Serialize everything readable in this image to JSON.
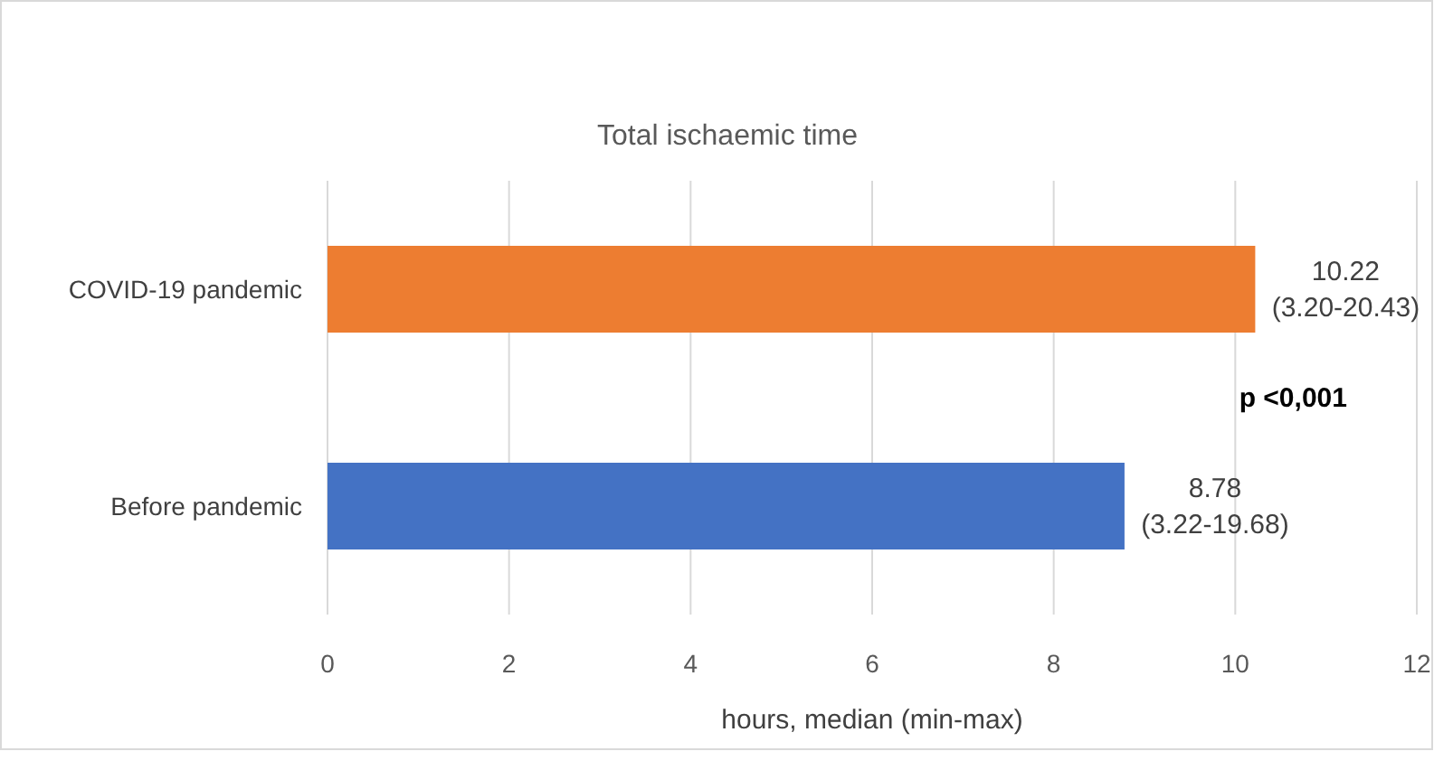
{
  "chart_data": {
    "type": "bar",
    "orientation": "horizontal",
    "title": "Total ischaemic time",
    "xlabel": "hours, median (min-max)",
    "categories": [
      "COVID-19 pandemic",
      "Before pandemic"
    ],
    "values": [
      10.22,
      8.78
    ],
    "colors": [
      "#ed7d31",
      "#4472c4"
    ],
    "value_labels": [
      "10.22\n(3.20-20.43)",
      "8.78\n(3.22-19.68)"
    ],
    "xlim": [
      0,
      12
    ],
    "xticks": [
      0,
      2,
      4,
      6,
      8,
      10,
      12
    ],
    "grid": "x",
    "annotations": [
      "p <0,001"
    ]
  }
}
